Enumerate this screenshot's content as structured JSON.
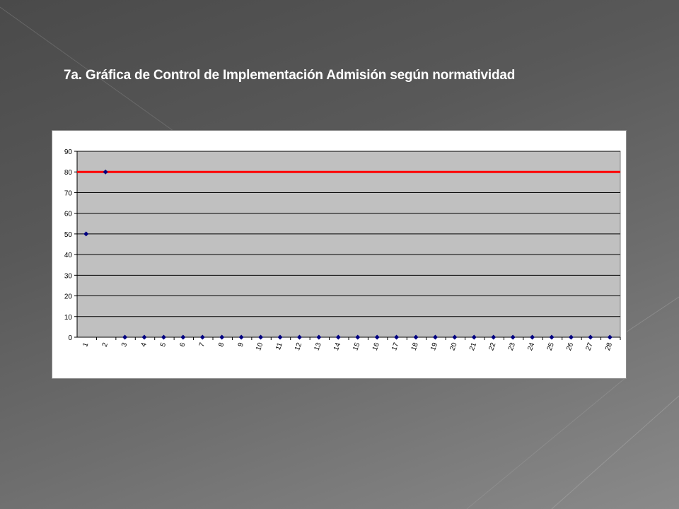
{
  "slide": {
    "title": "7a. Gráfica de Control de Implementación Admisión según normatividad"
  },
  "chart_data": {
    "type": "scatter",
    "title": "",
    "xlabel": "",
    "ylabel": "",
    "x": [
      1,
      2,
      3,
      4,
      5,
      6,
      7,
      8,
      9,
      10,
      11,
      12,
      13,
      14,
      15,
      16,
      17,
      18,
      19,
      20,
      21,
      22,
      23,
      24,
      25,
      26,
      27,
      28
    ],
    "series": [
      {
        "values": [
          50,
          80,
          0,
          0,
          0,
          0,
          0,
          0,
          0,
          0,
          0,
          0,
          0,
          0,
          0,
          0,
          0,
          0,
          0,
          0,
          0,
          0,
          0,
          0,
          0,
          0,
          0,
          0
        ],
        "color": "#000080",
        "marker": "diamond"
      }
    ],
    "reference_line": {
      "value": 80,
      "color": "#ff0000"
    },
    "ylim": [
      0,
      90
    ],
    "yticks": [
      0,
      10,
      20,
      30,
      40,
      50,
      60,
      70,
      80,
      90
    ],
    "grid": true,
    "plot_background": "#c0c0c0",
    "legend": "none"
  },
  "colors": {
    "slide_text": "#ffffff",
    "plot_area": "#c0c0c0",
    "gridline": "#000000",
    "marker": "#000080",
    "reference_line": "#ff0000"
  }
}
